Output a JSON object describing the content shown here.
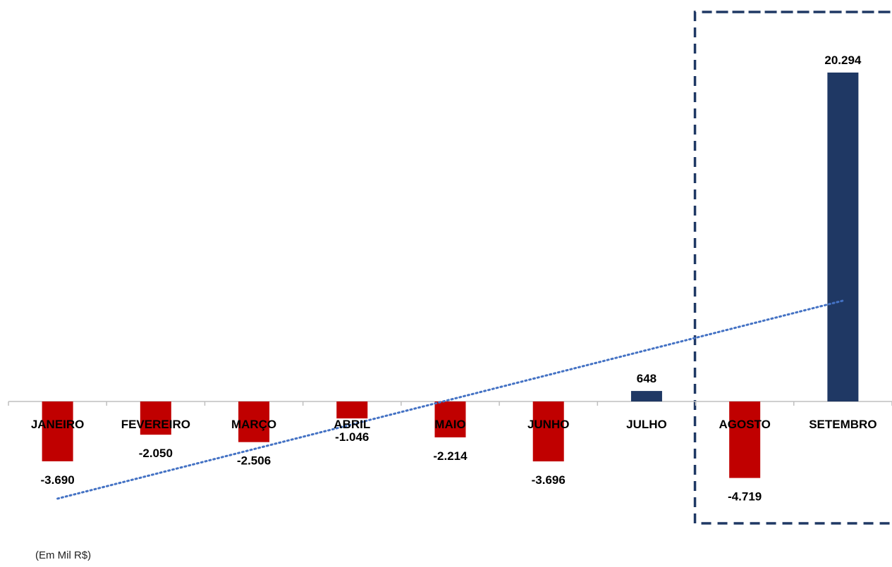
{
  "chart_data": {
    "type": "bar",
    "categories": [
      "JANEIRO",
      "FEVEREIRO",
      "MARÇO",
      "ABRIL",
      "MAIO",
      "JUNHO",
      "JULHO",
      "AGOSTO",
      "SETEMBRO"
    ],
    "values": [
      -3690,
      -2050,
      -2506,
      -1046,
      -2214,
      -3696,
      648,
      -4719,
      20294
    ],
    "value_labels": [
      "-3.690",
      "-2.050",
      "-2.506",
      "-1.046",
      "-2.214",
      "-3.696",
      "648",
      "-4.719",
      "20.294"
    ],
    "unit_note": "(Em Mil R$)",
    "trendline": {
      "type": "linear",
      "style": "dotted"
    },
    "highlight_box": {
      "categories": [
        "AGOSTO",
        "SETEMBRO"
      ],
      "style": "dashed"
    },
    "grid": false,
    "legend": "none",
    "colors": {
      "positive": "#1f3864",
      "negative": "#c00000",
      "trendline": "#4472c4",
      "highlight_border": "#1f3864",
      "axis": "#bfbfbf"
    }
  }
}
